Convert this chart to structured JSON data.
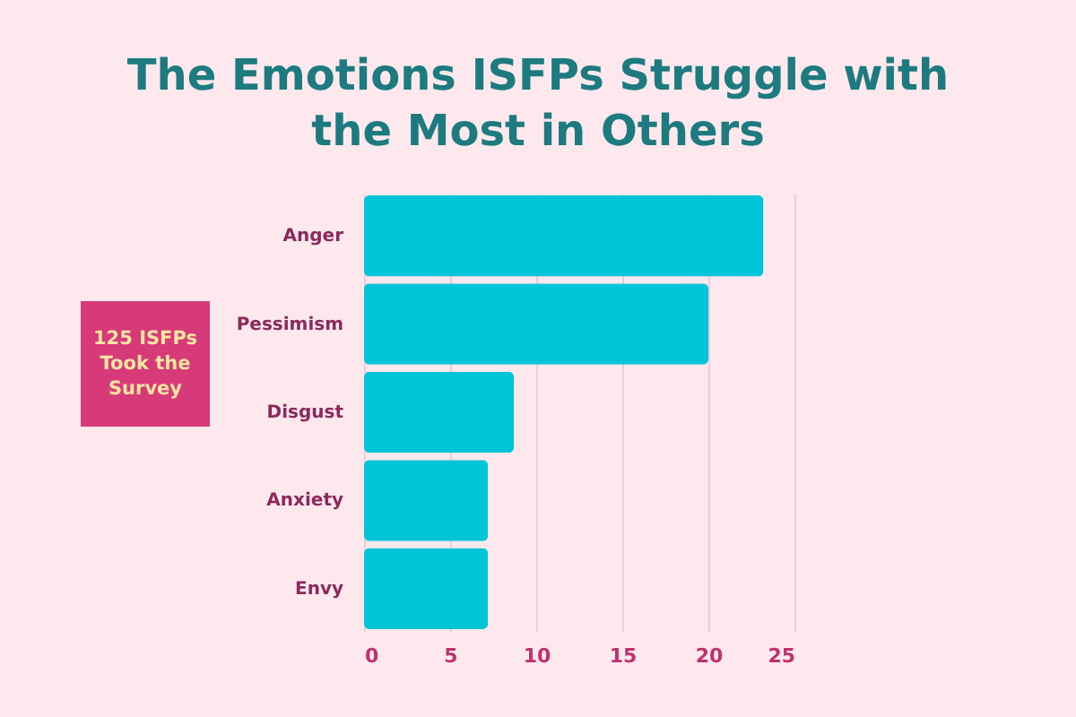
{
  "chart_data": {
    "type": "bar",
    "orientation": "horizontal",
    "title": "The Emotions ISFPs Struggle with the Most in Others",
    "categories": [
      "Anger",
      "Pessimism",
      "Disgust",
      "Anxiety",
      "Envy"
    ],
    "values": [
      23.2,
      20,
      8.7,
      7.2,
      7.2
    ],
    "color": "#00c5d8",
    "xlim": [
      0,
      25
    ],
    "xticks": [
      0,
      5,
      10,
      15,
      20,
      25
    ],
    "grid": "x",
    "annotations": [
      "125 ISFPs Took the Survey"
    ]
  }
}
